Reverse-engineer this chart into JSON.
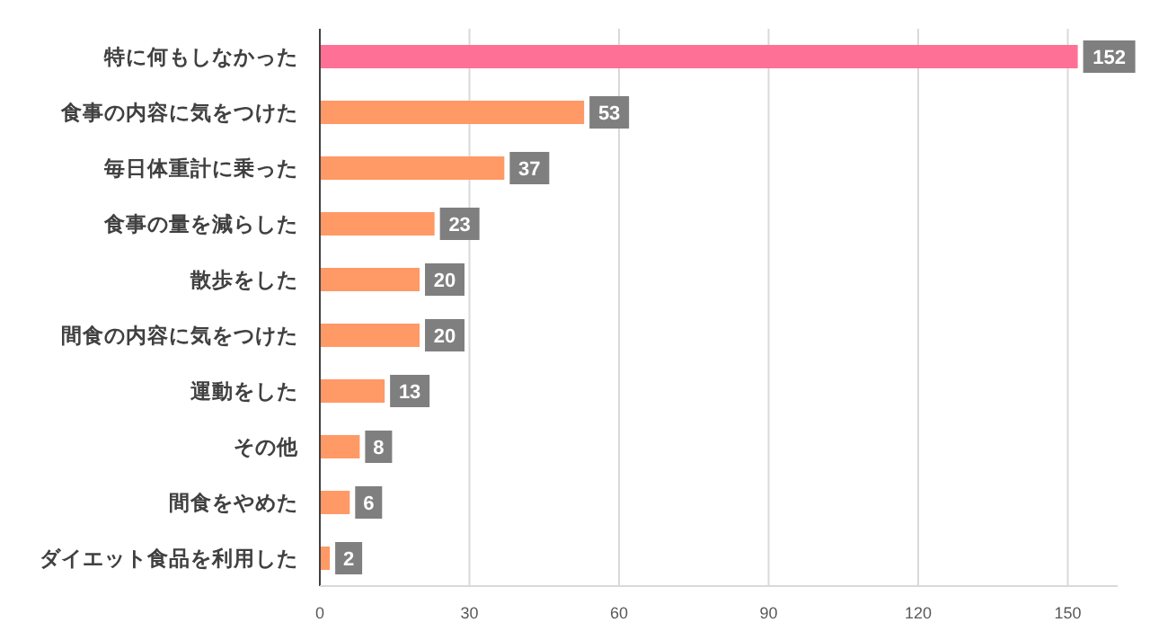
{
  "chart_data": {
    "type": "bar",
    "orientation": "horizontal",
    "categories": [
      "特に何もしなかった",
      "食事の内容に気をつけた",
      "毎日体重計に乗った",
      "食事の量を減らした",
      "散歩をした",
      "間食の内容に気をつけた",
      "運動をした",
      "その他",
      "間食をやめた",
      "ダイエット食品を利用した"
    ],
    "values": [
      152,
      53,
      37,
      23,
      20,
      20,
      13,
      8,
      6,
      2
    ],
    "colors": [
      "#ff7096",
      "#ff9966",
      "#ff9966",
      "#ff9966",
      "#ff9966",
      "#ff9966",
      "#ff9966",
      "#ff9966",
      "#ff9966",
      "#ff9966"
    ],
    "data_labels": true,
    "xlim": [
      0,
      160
    ],
    "xticks": [
      0,
      30,
      60,
      90,
      120,
      150
    ],
    "grid": "x"
  }
}
